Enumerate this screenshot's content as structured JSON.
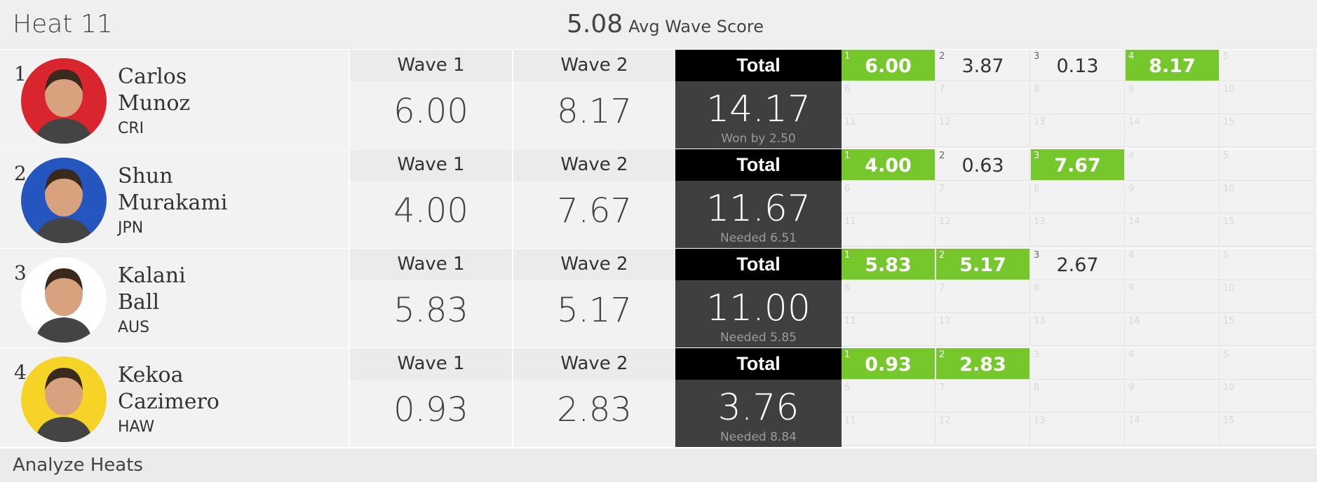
{
  "header": {
    "heat_title": "Heat 11",
    "avg_value": "5.08",
    "avg_label": "Avg Wave Score"
  },
  "footer": {
    "analyze_label": "Analyze Heats"
  },
  "colors": {
    "green": "#76c72b",
    "total_head": "#000000",
    "total_body": "#3f3f3f"
  },
  "surfers": [
    {
      "rank": "1",
      "first": "Carlos",
      "last": "Munoz",
      "country": "CRI",
      "wave1_label": "Wave 1",
      "wave2_label": "Wave 2",
      "total_label": "Total",
      "wave1": "6.00",
      "wave2": "8.17",
      "total": "14.17",
      "note": "Won by 2.50",
      "avatar_color": "#d9262e",
      "waves": [
        {
          "n": "1",
          "score": "6.00",
          "counted": true
        },
        {
          "n": "2",
          "score": "3.87",
          "counted": false
        },
        {
          "n": "3",
          "score": "0.13",
          "counted": false
        },
        {
          "n": "4",
          "score": "8.17",
          "counted": true
        }
      ]
    },
    {
      "rank": "2",
      "first": "Shun",
      "last": "Murakami",
      "country": "JPN",
      "wave1_label": "Wave 1",
      "wave2_label": "Wave 2",
      "total_label": "Total",
      "wave1": "4.00",
      "wave2": "7.67",
      "total": "11.67",
      "note": "Needed 6.51",
      "avatar_color": "#2556c0",
      "waves": [
        {
          "n": "1",
          "score": "4.00",
          "counted": true
        },
        {
          "n": "2",
          "score": "0.63",
          "counted": false
        },
        {
          "n": "3",
          "score": "7.67",
          "counted": true
        }
      ]
    },
    {
      "rank": "3",
      "first": "Kalani",
      "last": "Ball",
      "country": "AUS",
      "wave1_label": "Wave 1",
      "wave2_label": "Wave 2",
      "total_label": "Total",
      "wave1": "5.83",
      "wave2": "5.17",
      "total": "11.00",
      "note": "Needed 5.85",
      "avatar_color": "#ffffff",
      "waves": [
        {
          "n": "1",
          "score": "5.83",
          "counted": true
        },
        {
          "n": "2",
          "score": "5.17",
          "counted": true
        },
        {
          "n": "3",
          "score": "2.67",
          "counted": false
        }
      ]
    },
    {
      "rank": "4",
      "first": "Kekoa",
      "last": "Cazimero",
      "country": "HAW",
      "wave1_label": "Wave 1",
      "wave2_label": "Wave 2",
      "total_label": "Total",
      "wave1": "0.93",
      "wave2": "2.83",
      "total": "3.76",
      "note": "Needed 8.84",
      "avatar_color": "#f5d327",
      "waves": [
        {
          "n": "1",
          "score": "0.93",
          "counted": true
        },
        {
          "n": "2",
          "score": "2.83",
          "counted": true
        }
      ]
    }
  ]
}
